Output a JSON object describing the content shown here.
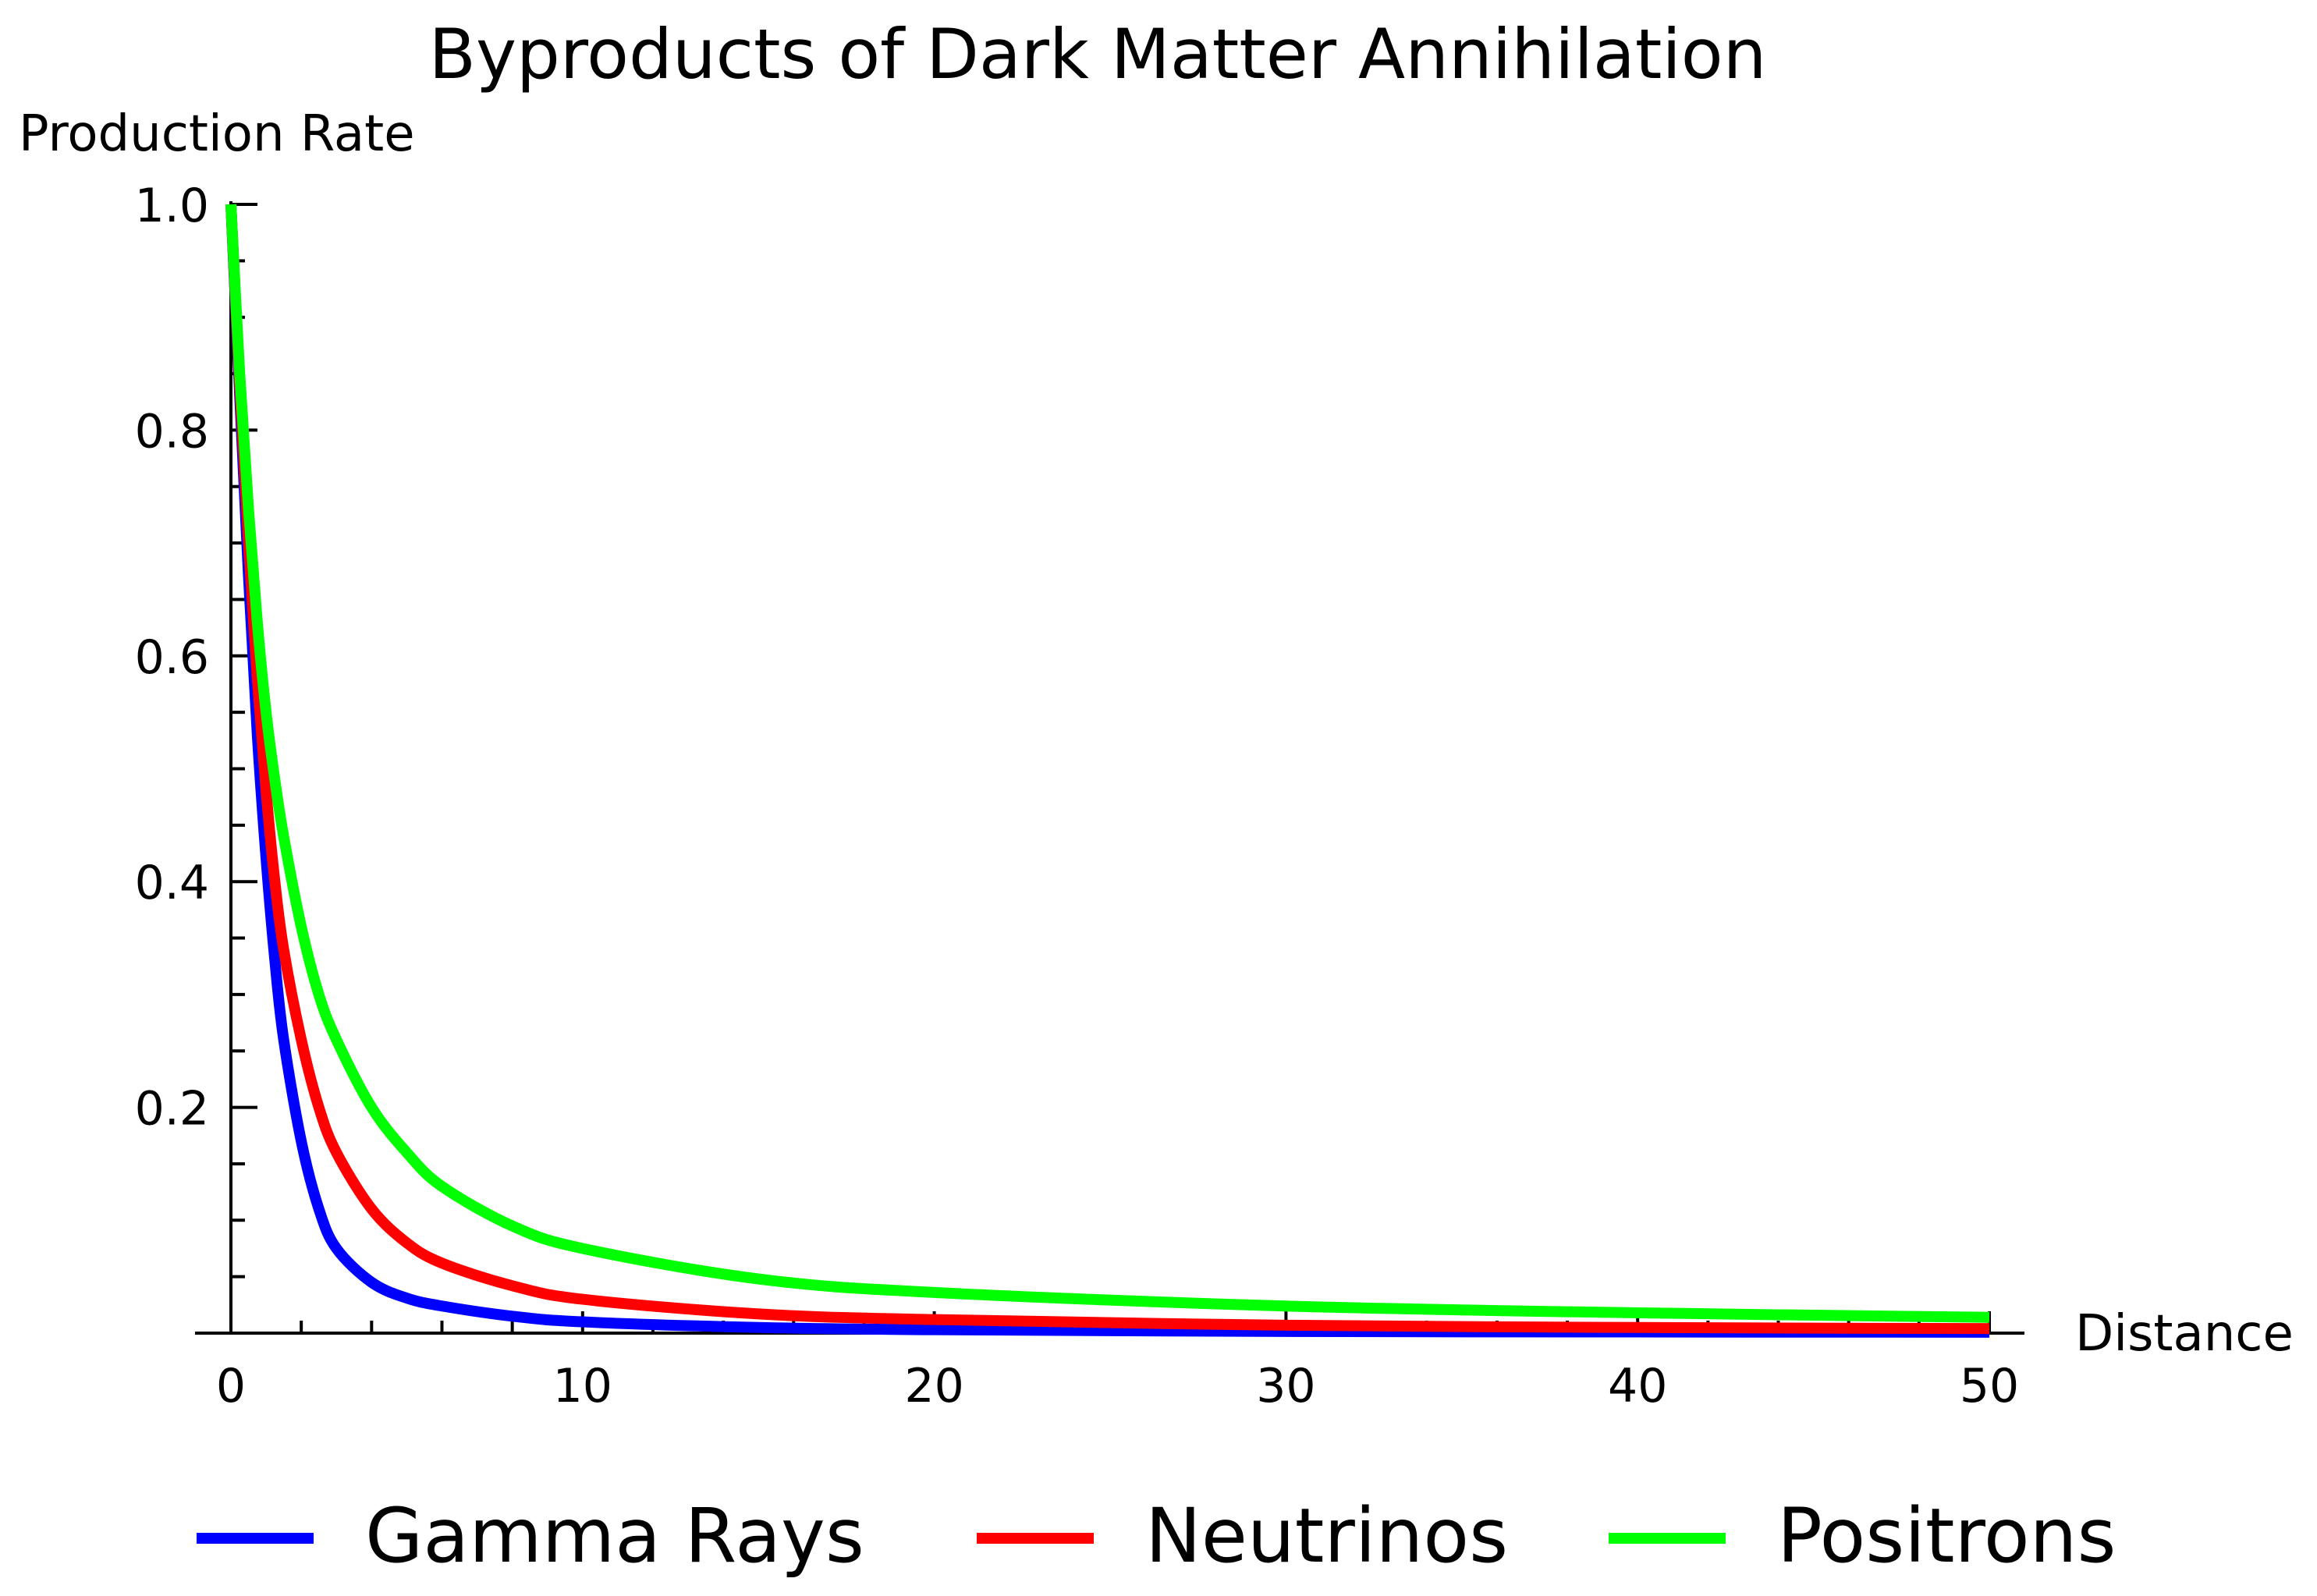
{
  "chart_data": {
    "type": "line",
    "title": "Byproducts of Dark Matter Annihilation",
    "xlabel": "Distance",
    "ylabel": "Production Rate",
    "xlim": [
      0,
      50
    ],
    "ylim": [
      0,
      1.0
    ],
    "xticks": [
      0,
      10,
      20,
      30,
      40,
      50
    ],
    "xtick_labels": [
      "0",
      "10",
      "20",
      "30",
      "40",
      "50"
    ],
    "yticks": [
      0.2,
      0.4,
      0.6,
      0.8,
      1.0
    ],
    "ytick_labels": [
      "0.2",
      "0.4",
      "0.6",
      "0.8",
      "1.0"
    ],
    "grid": false,
    "legend_position": "bottom",
    "series": [
      {
        "name": "Gamma Rays",
        "color": "#0000ff",
        "x": [
          0,
          0.25,
          0.5,
          0.75,
          1,
          1.25,
          1.5,
          2,
          2.5,
          3,
          4,
          5,
          6,
          8,
          10,
          15,
          20,
          30,
          40,
          50
        ],
        "y": [
          1.0,
          0.83,
          0.67,
          0.53,
          0.42,
          0.33,
          0.26,
          0.17,
          0.11,
          0.075,
          0.045,
          0.031,
          0.024,
          0.015,
          0.01,
          0.005,
          0.003,
          0.0015,
          0.001,
          0.0008
        ]
      },
      {
        "name": "Neutrinos",
        "color": "#ff0000",
        "x": [
          0,
          0.25,
          0.5,
          0.75,
          1,
          1.25,
          1.5,
          2,
          2.5,
          3,
          4,
          5,
          6,
          8,
          10,
          15,
          20,
          30,
          40,
          50
        ],
        "y": [
          1.0,
          0.84,
          0.7,
          0.58,
          0.48,
          0.4,
          0.34,
          0.26,
          0.2,
          0.16,
          0.11,
          0.08,
          0.062,
          0.042,
          0.03,
          0.017,
          0.012,
          0.007,
          0.005,
          0.004
        ]
      },
      {
        "name": "Positrons",
        "color": "#00ff00",
        "x": [
          0,
          0.25,
          0.5,
          0.75,
          1,
          1.25,
          1.5,
          2,
          2.5,
          3,
          4,
          5,
          6,
          8,
          10,
          15,
          20,
          30,
          40,
          50
        ],
        "y": [
          1.0,
          0.85,
          0.73,
          0.63,
          0.55,
          0.49,
          0.44,
          0.36,
          0.3,
          0.26,
          0.2,
          0.16,
          0.13,
          0.095,
          0.075,
          0.048,
          0.036,
          0.024,
          0.018,
          0.014
        ]
      }
    ]
  }
}
